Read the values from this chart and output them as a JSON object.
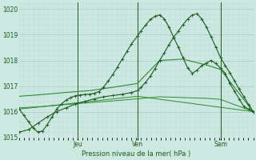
{
  "bg_color": "#cce8e0",
  "grid_color_major": "#aacccc",
  "grid_color_minor": "#bbdddd",
  "line_dark": "#1a5c1a",
  "line_mid": "#2d8c2d",
  "xlabel": "Pression niveau de la mer( hPa )",
  "ylim": [
    1015.0,
    1020.25
  ],
  "yticks": [
    1015,
    1016,
    1017,
    1018,
    1019,
    1020
  ],
  "xlim": [
    0.0,
    1.0
  ],
  "vline_positions": [
    0.25,
    0.505,
    0.86
  ],
  "vline_labels": [
    "Jeu",
    "Ven",
    "Sam"
  ],
  "line1_x": [
    0.0,
    0.02,
    0.04,
    0.06,
    0.08,
    0.1,
    0.12,
    0.14,
    0.16,
    0.18,
    0.2,
    0.22,
    0.24,
    0.26,
    0.28,
    0.3,
    0.32,
    0.34,
    0.36,
    0.38,
    0.4,
    0.42,
    0.44,
    0.46,
    0.48,
    0.505,
    0.52,
    0.54,
    0.56,
    0.58,
    0.6,
    0.62,
    0.64,
    0.66,
    0.68,
    0.7,
    0.72,
    0.74,
    0.76,
    0.78,
    0.8,
    0.82,
    0.84,
    0.86,
    0.88,
    0.9,
    0.92,
    0.94,
    0.96,
    0.98,
    1.0
  ],
  "line1_y": [
    1016.1,
    1015.85,
    1015.6,
    1015.35,
    1015.2,
    1015.25,
    1015.5,
    1015.8,
    1016.1,
    1016.3,
    1016.45,
    1016.55,
    1016.62,
    1016.65,
    1016.67,
    1016.68,
    1016.72,
    1016.78,
    1016.95,
    1017.2,
    1017.45,
    1017.75,
    1018.05,
    1018.35,
    1018.65,
    1018.95,
    1019.15,
    1019.38,
    1019.6,
    1019.72,
    1019.78,
    1019.62,
    1019.3,
    1018.9,
    1018.52,
    1018.1,
    1017.7,
    1017.5,
    1017.62,
    1017.8,
    1017.9,
    1018.0,
    1017.88,
    1017.7,
    1017.5,
    1017.1,
    1016.8,
    1016.5,
    1016.2,
    1016.1,
    1016.0
  ],
  "line2_x": [
    0.0,
    0.04,
    0.08,
    0.12,
    0.16,
    0.2,
    0.24,
    0.28,
    0.32,
    0.36,
    0.4,
    0.44,
    0.48,
    0.505,
    0.52,
    0.54,
    0.56,
    0.58,
    0.6,
    0.62,
    0.64,
    0.66,
    0.68,
    0.7,
    0.72,
    0.74,
    0.76,
    0.78,
    0.8,
    0.82,
    0.84,
    0.86,
    0.88,
    0.9,
    0.92,
    0.94,
    0.96,
    0.98,
    1.0
  ],
  "line2_y": [
    1015.2,
    1015.3,
    1015.55,
    1015.8,
    1016.0,
    1016.15,
    1016.3,
    1016.4,
    1016.5,
    1016.58,
    1016.63,
    1016.68,
    1016.75,
    1016.82,
    1016.95,
    1017.15,
    1017.38,
    1017.68,
    1018.0,
    1018.3,
    1018.62,
    1018.9,
    1019.15,
    1019.4,
    1019.62,
    1019.78,
    1019.82,
    1019.62,
    1019.3,
    1018.92,
    1018.52,
    1018.12,
    1017.8,
    1017.52,
    1017.2,
    1016.88,
    1016.58,
    1016.28,
    1016.0
  ],
  "line3_x": [
    0.0,
    0.1,
    0.2,
    0.3,
    0.4,
    0.505,
    0.6,
    0.7,
    0.8,
    0.86,
    1.0
  ],
  "line3_y": [
    1016.6,
    1016.67,
    1016.75,
    1016.82,
    1016.95,
    1017.1,
    1018.0,
    1018.05,
    1017.82,
    1017.65,
    1016.0
  ],
  "line4_x": [
    0.0,
    0.1,
    0.2,
    0.3,
    0.4,
    0.505,
    0.6,
    0.7,
    0.8,
    0.86,
    1.0
  ],
  "line4_y": [
    1016.15,
    1016.2,
    1016.28,
    1016.35,
    1016.42,
    1016.5,
    1016.58,
    1016.55,
    1016.52,
    1016.48,
    1016.0
  ],
  "line5_x": [
    0.0,
    0.505,
    1.0
  ],
  "line5_y": [
    1016.1,
    1016.6,
    1016.0
  ]
}
